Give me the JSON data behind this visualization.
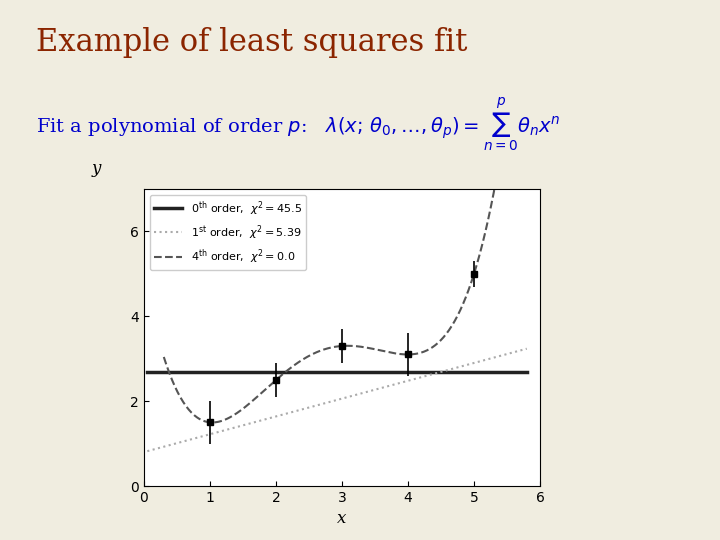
{
  "title": "Example of least squares fit",
  "title_color": "#8B2500",
  "subtitle_color": "#0000CC",
  "bg_color": "#f0ede0",
  "plot_bg": "#ffffff",
  "data_x": [
    1,
    2,
    3,
    4,
    5
  ],
  "data_y": [
    1.5,
    2.5,
    3.3,
    3.1,
    5.0
  ],
  "data_yerr": [
    0.5,
    0.4,
    0.4,
    0.5,
    0.3
  ],
  "x_label": "x",
  "y_label": "y",
  "xlim": [
    0,
    6
  ],
  "ylim": [
    0,
    7
  ],
  "xticks": [
    0,
    1,
    2,
    3,
    4,
    5,
    6
  ],
  "yticks": [
    0,
    2,
    4,
    6
  ],
  "fit0_y": 2.68,
  "fit0_label": "$0^{\\mathrm{th}}$ order,  $\\chi^2 = 45.5$",
  "fit0_color": "#222222",
  "fit0_lw": 2.5,
  "fit1_label": "$1^{\\mathrm{st}}$ order,  $\\chi^2 = 5.39$",
  "fit1_color": "#aaaaaa",
  "fit1_lw": 1.5,
  "fit1_coeffs": [
    0.8,
    0.42
  ],
  "fit4_label": "$4^{\\mathrm{th}}$ order,  $\\chi^2 = 0.0$",
  "fit4_color": "#555555",
  "fit4_lw": 1.5
}
